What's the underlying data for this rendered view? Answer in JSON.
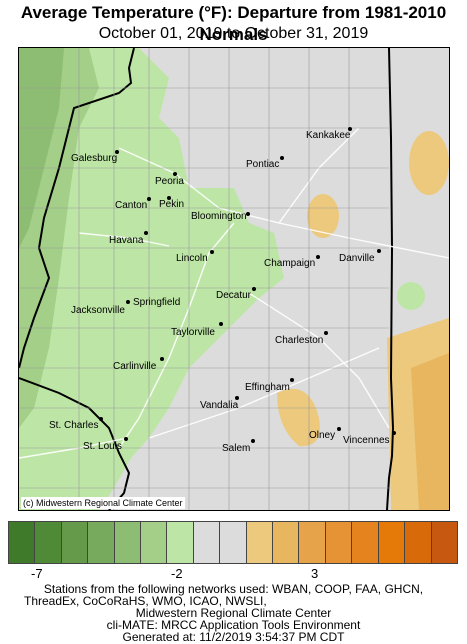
{
  "title": "Average Temperature (°F): Departure from 1981-2010 Normals",
  "subtitle": "October 01, 2019 to October 31, 2019",
  "map_credit": "(c) Midwestern Regional Climate Center",
  "cities": [
    {
      "name": "Kankakee"
    },
    {
      "name": "Galesburg"
    },
    {
      "name": "Pontiac"
    },
    {
      "name": "Peoria"
    },
    {
      "name": "Canton"
    },
    {
      "name": "Pekin"
    },
    {
      "name": "Bloomington"
    },
    {
      "name": "Havana"
    },
    {
      "name": "Lincoln"
    },
    {
      "name": "Champaign"
    },
    {
      "name": "Danville"
    },
    {
      "name": "Decatur"
    },
    {
      "name": "Springfield"
    },
    {
      "name": "Jacksonville"
    },
    {
      "name": "Taylorville"
    },
    {
      "name": "Charleston"
    },
    {
      "name": "Carlinville"
    },
    {
      "name": "Effingham"
    },
    {
      "name": "Vandalia"
    },
    {
      "name": "St. Charles"
    },
    {
      "name": "Olney"
    },
    {
      "name": "Vincennes"
    },
    {
      "name": "St. Louis"
    },
    {
      "name": "Salem"
    }
  ],
  "legend": {
    "colors": [
      "#3f7a2a",
      "#4f8a37",
      "#649a4a",
      "#78aa5e",
      "#8dbc73",
      "#a3cf88",
      "#bde6a6",
      "#dcdcdc",
      "#dcdcdc",
      "#ecc97d",
      "#e8b65f",
      "#e6a34a",
      "#e59334",
      "#e5831f",
      "#e57a09",
      "#d86a0a",
      "#c75810"
    ],
    "ticks": [
      "-7",
      "-2",
      "3"
    ]
  },
  "footer": {
    "line1": "Stations from the following networks used: WBAN, COOP, FAA, GHCN,",
    "line2": "ThreadEx, CoCoRaHS, WMO, ICAO, NWSLI,",
    "line3": "Midwestern Regional Climate Center",
    "line4": "cli-MATE: MRCC Application Tools Environment",
    "line5": "Generated at: 11/2/2019 3:54:37 PM CDT"
  }
}
